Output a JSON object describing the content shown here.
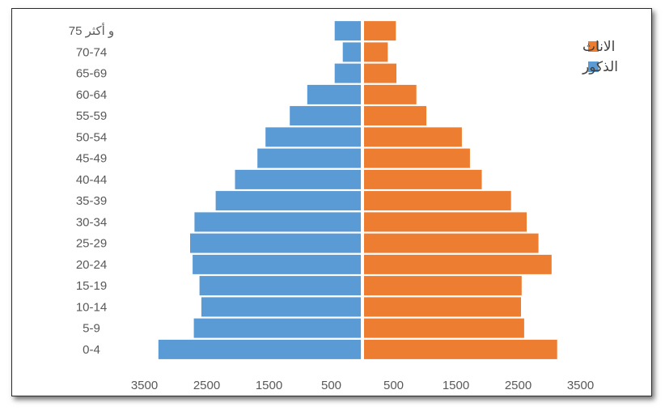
{
  "chart_data": {
    "type": "bar",
    "orientation": "horizontal",
    "style": "population-pyramid",
    "categories": [
      "0-4",
      "5-9",
      "10-14",
      "15-19",
      "20-24",
      "25-29",
      "30-34",
      "35-39",
      "40-44",
      "45-49",
      "50-54",
      "55-59",
      "60-64",
      "65-69",
      "70-74",
      "و أكثر 75"
    ],
    "series": [
      {
        "name": "الذكور",
        "color": "#5b9bd5",
        "side": "left",
        "values": [
          3250,
          2680,
          2560,
          2590,
          2700,
          2740,
          2670,
          2330,
          2020,
          1660,
          1530,
          1140,
          860,
          420,
          290,
          420
        ]
      },
      {
        "name": "الاناث",
        "color": "#ed7d31",
        "side": "right",
        "values": [
          3100,
          2570,
          2520,
          2530,
          3010,
          2800,
          2610,
          2360,
          1890,
          1700,
          1570,
          1000,
          840,
          520,
          380,
          510
        ]
      }
    ],
    "x_ticks": [
      "3500",
      "2500",
      "1500",
      "500",
      "500",
      "1500",
      "2500",
      "3500"
    ],
    "xlim": [
      -3500,
      3500
    ],
    "grid": false,
    "legend_position": "top-right"
  }
}
